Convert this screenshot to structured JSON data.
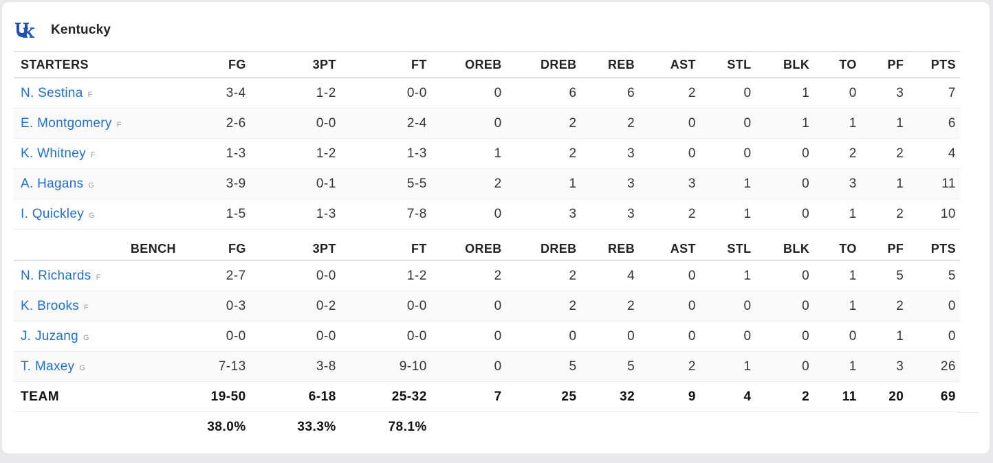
{
  "team": {
    "name": "Kentucky",
    "logo_icon": "uk-wildcats-logo"
  },
  "columns": [
    "FG",
    "3PT",
    "FT",
    "OREB",
    "DREB",
    "REB",
    "AST",
    "STL",
    "BLK",
    "TO",
    "PF",
    "PTS"
  ],
  "starters": {
    "label": "STARTERS",
    "players": [
      {
        "name": "N. Sestina",
        "pos": "F",
        "stats": [
          "3-4",
          "1-2",
          "0-0",
          "0",
          "6",
          "6",
          "2",
          "0",
          "1",
          "0",
          "3",
          "7"
        ]
      },
      {
        "name": "E. Montgomery",
        "pos": "F",
        "stats": [
          "2-6",
          "0-0",
          "2-4",
          "0",
          "2",
          "2",
          "0",
          "0",
          "1",
          "1",
          "1",
          "6"
        ]
      },
      {
        "name": "K. Whitney",
        "pos": "F",
        "stats": [
          "1-3",
          "1-2",
          "1-3",
          "1",
          "2",
          "3",
          "0",
          "0",
          "0",
          "2",
          "2",
          "4"
        ]
      },
      {
        "name": "A. Hagans",
        "pos": "G",
        "stats": [
          "3-9",
          "0-1",
          "5-5",
          "2",
          "1",
          "3",
          "3",
          "1",
          "0",
          "3",
          "1",
          "11"
        ]
      },
      {
        "name": "I. Quickley",
        "pos": "G",
        "stats": [
          "1-5",
          "1-3",
          "7-8",
          "0",
          "3",
          "3",
          "2",
          "1",
          "0",
          "1",
          "2",
          "10"
        ]
      }
    ]
  },
  "bench": {
    "label": "BENCH",
    "players": [
      {
        "name": "N. Richards",
        "pos": "F",
        "stats": [
          "2-7",
          "0-0",
          "1-2",
          "2",
          "2",
          "4",
          "0",
          "1",
          "0",
          "1",
          "5",
          "5"
        ]
      },
      {
        "name": "K. Brooks",
        "pos": "F",
        "stats": [
          "0-3",
          "0-2",
          "0-0",
          "0",
          "2",
          "2",
          "0",
          "0",
          "0",
          "1",
          "2",
          "0"
        ]
      },
      {
        "name": "J. Juzang",
        "pos": "G",
        "stats": [
          "0-0",
          "0-0",
          "0-0",
          "0",
          "0",
          "0",
          "0",
          "0",
          "0",
          "0",
          "1",
          "0"
        ]
      },
      {
        "name": "T. Maxey",
        "pos": "G",
        "stats": [
          "7-13",
          "3-8",
          "9-10",
          "0",
          "5",
          "5",
          "2",
          "1",
          "0",
          "1",
          "3",
          "26"
        ]
      }
    ]
  },
  "totals": {
    "label": "TEAM",
    "stats": [
      "19-50",
      "6-18",
      "25-32",
      "7",
      "25",
      "32",
      "9",
      "4",
      "2",
      "11",
      "20",
      "69"
    ],
    "percentages": [
      "38.0%",
      "33.3%",
      "78.1%"
    ]
  },
  "colors": {
    "link": "#1e6fcf",
    "logo": "#1d4fb8"
  }
}
